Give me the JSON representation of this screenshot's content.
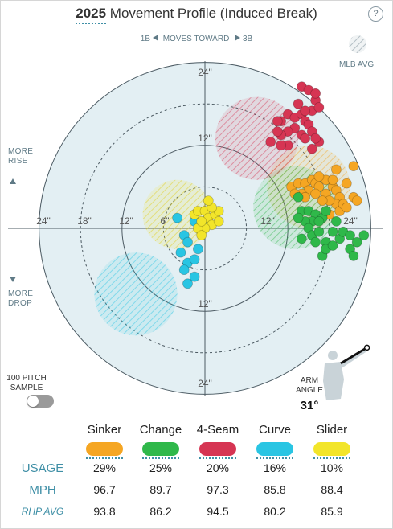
{
  "header": {
    "year": "2025",
    "title_rest": "Movement Profile (Induced Break)",
    "help_icon": "?"
  },
  "direction": {
    "left": "1B",
    "middle": "MOVES TOWARD",
    "right": "3B"
  },
  "mlb_avg_label": "MLB AVG.",
  "side_labels": {
    "more_rise_1": "MORE",
    "more_rise_2": "RISE",
    "more_drop_1": "MORE",
    "more_drop_2": "DROP"
  },
  "toggle": {
    "label_1": "100 PITCH",
    "label_2": "SAMPLE",
    "on": false
  },
  "arm_angle": {
    "label_1": "ARM",
    "label_2": "ANGLE",
    "value": "31°",
    "degrees": 31
  },
  "axis_labels": {
    "top_24": "24\"",
    "top_12": "12\"",
    "bottom_12": "12\"",
    "bottom_24": "24\"",
    "left_24": "24\"",
    "left_18": "18\"",
    "left_12": "12\"",
    "left_6": "6\"",
    "right_12": "12\"",
    "right_24": "24\""
  },
  "chart_data": {
    "type": "scatter",
    "title": "Movement Profile (Induced Break)",
    "xlabel": "",
    "ylabel": "",
    "xlim": [
      -30,
      30
    ],
    "ylim": [
      -30,
      30
    ],
    "units": "inches",
    "rings": [
      6,
      12,
      18,
      24
    ],
    "series": [
      {
        "name": "Sinker",
        "color": "#f5a623",
        "mlb_avg": {
          "x": 15,
          "y": 6,
          "r": 6
        },
        "points": [
          [
            12.5,
            6
          ],
          [
            13.5,
            6.5
          ],
          [
            14.5,
            6.5
          ],
          [
            15.5,
            7
          ],
          [
            16,
            6.5
          ],
          [
            17.5,
            7
          ],
          [
            16.5,
            6
          ],
          [
            15,
            5.5
          ],
          [
            14,
            5
          ],
          [
            13,
            5
          ],
          [
            14.5,
            4.5
          ],
          [
            16,
            5
          ],
          [
            17.5,
            5
          ],
          [
            18.5,
            6
          ],
          [
            19,
            5.5
          ],
          [
            19.5,
            4.5
          ],
          [
            19,
            3.5
          ],
          [
            18,
            4
          ],
          [
            17,
            4
          ],
          [
            18,
            2
          ],
          [
            19.5,
            2.5
          ],
          [
            16.5,
            7.5
          ],
          [
            19,
            8.5
          ],
          [
            21.5,
            9
          ],
          [
            18.5,
            7
          ],
          [
            20.5,
            6.5
          ],
          [
            20,
            3.5
          ],
          [
            21.5,
            4.5
          ],
          [
            20.5,
            3
          ],
          [
            22,
            4
          ]
        ]
      },
      {
        "name": "Change",
        "color": "#2fb84a",
        "mlb_avg": {
          "x": 13,
          "y": 3,
          "r": 6
        },
        "points": [
          [
            13.5,
            4.5
          ],
          [
            14,
            2.5
          ],
          [
            15,
            2.5
          ],
          [
            16,
            2
          ],
          [
            17,
            1.5
          ],
          [
            15.5,
            1
          ],
          [
            14.5,
            1
          ],
          [
            13.5,
            1.5
          ],
          [
            16.5,
            1
          ],
          [
            17.5,
            2.5
          ],
          [
            15,
            0
          ],
          [
            14,
            -1.5
          ],
          [
            15.5,
            -1
          ],
          [
            16.5,
            -0.5
          ],
          [
            17.5,
            -2
          ],
          [
            18.5,
            -0.5
          ],
          [
            17,
            -4
          ],
          [
            17.5,
            -3
          ],
          [
            16,
            -2
          ],
          [
            18.5,
            -2.5
          ],
          [
            19.5,
            -1.5
          ],
          [
            20,
            -0.5
          ],
          [
            19,
            1
          ],
          [
            21,
            -3
          ],
          [
            22,
            -2
          ],
          [
            23,
            -1
          ],
          [
            21,
            -1
          ],
          [
            21.5,
            -4
          ]
        ]
      },
      {
        "name": "4-Seam",
        "color": "#d63553",
        "mlb_avg": {
          "x": 7.5,
          "y": 13,
          "r": 6
        },
        "points": [
          [
            12,
            16.5
          ],
          [
            13,
            16
          ],
          [
            13.5,
            18
          ],
          [
            14,
            16.5
          ],
          [
            14.5,
            15.5
          ],
          [
            13,
            14.5
          ],
          [
            14,
            13.5
          ],
          [
            12,
            14
          ],
          [
            11,
            15.5
          ],
          [
            11,
            13.5
          ],
          [
            12,
            12
          ],
          [
            11,
            12
          ],
          [
            9.5,
            12.5
          ],
          [
            10.5,
            14
          ],
          [
            10.5,
            15.5
          ],
          [
            15,
            15
          ],
          [
            15.5,
            14
          ],
          [
            14.5,
            13
          ],
          [
            16.5,
            12.5
          ],
          [
            15.5,
            11.5
          ],
          [
            16,
            13
          ],
          [
            15.5,
            17
          ],
          [
            14.5,
            17
          ],
          [
            16,
            18.5
          ],
          [
            16.5,
            17.5
          ],
          [
            14,
            20.5
          ],
          [
            15,
            20
          ],
          [
            16,
            19.5
          ]
        ]
      },
      {
        "name": "Curve",
        "color": "#29c5e3",
        "mlb_avg": {
          "x": -10,
          "y": -9.5,
          "r": 6
        },
        "points": [
          [
            -4,
            1.5
          ],
          [
            -3,
            -1
          ],
          [
            -2.5,
            -2
          ],
          [
            -3.5,
            -3.5
          ],
          [
            -2.5,
            -5
          ],
          [
            -1.5,
            -4.5
          ],
          [
            -3,
            -6
          ],
          [
            -1.5,
            -7
          ],
          [
            -2.5,
            -8
          ],
          [
            -1,
            -3
          ],
          [
            -0.5,
            -0.5
          ],
          [
            -1.5,
            1
          ],
          [
            0,
            1
          ]
        ]
      },
      {
        "name": "Slider",
        "color": "#f2e52a",
        "mlb_avg": {
          "x": -4,
          "y": 2,
          "r": 5
        },
        "points": [
          [
            -1.5,
            2
          ],
          [
            -1,
            2.5
          ],
          [
            0,
            2.5
          ],
          [
            0.5,
            1.5
          ],
          [
            1,
            0.5
          ],
          [
            0,
            0
          ],
          [
            -1,
            0
          ],
          [
            -0.5,
            1
          ],
          [
            1.5,
            2
          ],
          [
            2,
            1
          ],
          [
            2,
            2.5
          ],
          [
            1,
            3
          ],
          [
            0.5,
            4
          ],
          [
            -0.5,
            -1
          ]
        ]
      }
    ]
  },
  "table": {
    "row_labels": {
      "usage": "USAGE",
      "mph": "MPH",
      "rhp_avg": "RHP AVG"
    },
    "pitches": [
      {
        "name": "Sinker",
        "color": "#f5a623",
        "usage": "29%",
        "mph": "96.7",
        "rhp_avg": "93.8"
      },
      {
        "name": "Change",
        "color": "#2fb84a",
        "usage": "25%",
        "mph": "89.7",
        "rhp_avg": "86.2"
      },
      {
        "name": "4-Seam",
        "color": "#d63553",
        "usage": "20%",
        "mph": "97.3",
        "rhp_avg": "94.5"
      },
      {
        "name": "Curve",
        "color": "#29c5e3",
        "usage": "16%",
        "mph": "85.8",
        "rhp_avg": "80.2"
      },
      {
        "name": "Slider",
        "color": "#f2e52a",
        "usage": "10%",
        "mph": "88.4",
        "rhp_avg": "85.9"
      }
    ]
  }
}
